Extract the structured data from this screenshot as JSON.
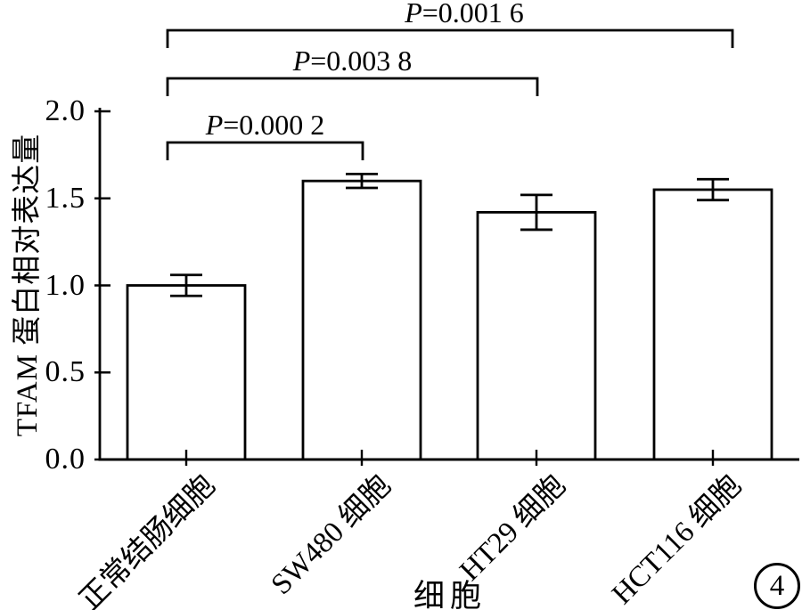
{
  "figure": {
    "number": "4"
  },
  "chart_data": {
    "type": "bar",
    "title": "",
    "categories": [
      "正常结肠细胞",
      "SW480 细胞",
      "HT29 细胞",
      "HCT116 细胞"
    ],
    "values": [
      1.0,
      1.6,
      1.42,
      1.55
    ],
    "errors": [
      0.06,
      0.04,
      0.1,
      0.06
    ],
    "xlabel": "细胞",
    "ylabel": "TFAM 蛋白相对表达量",
    "ylim": [
      0.0,
      2.0
    ],
    "yticks": [
      "0.0",
      "0.5",
      "1.0",
      "1.5",
      "2.0"
    ],
    "grid": "off",
    "legend": "none",
    "bar_fill": "#ffffff",
    "stroke_color": "#000000",
    "annotations": [
      {
        "label": "P=0.000 2",
        "from": 0,
        "to": 1
      },
      {
        "label": "P=0.003 8",
        "from": 0,
        "to": 2
      },
      {
        "label": "P=0.001 6",
        "from": 0,
        "to": 3
      }
    ]
  }
}
